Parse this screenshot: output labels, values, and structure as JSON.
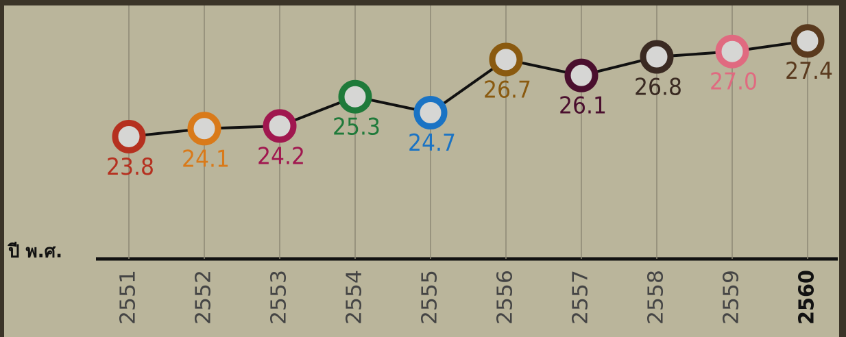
{
  "chart_data": {
    "type": "line",
    "x_label": "ปี พ.ศ.",
    "categories": [
      "2551",
      "2552",
      "2553",
      "2554",
      "2555",
      "2556",
      "2557",
      "2558",
      "2559",
      "2560"
    ],
    "series": [
      {
        "color": "#111111",
        "values": [
          23.8,
          24.1,
          24.2,
          25.3,
          24.7,
          26.7,
          26.1,
          26.8,
          27.0,
          27.4
        ],
        "value_labels": [
          "23.8",
          "24.1",
          "24.2",
          "25.3",
          "24.7",
          "26.7",
          "26.1",
          "26.8",
          "27.0",
          "27.4"
        ],
        "marker_colors": [
          "#b5301f",
          "#d97a1a",
          "#a0174f",
          "#1f7a3a",
          "#1a73c4",
          "#8a5a10",
          "#4a0f2e",
          "#3a2a22",
          "#e06a80",
          "#5a3a1e"
        ]
      }
    ],
    "ylim": [
      19.2,
      28.5
    ],
    "grid": true
  }
}
